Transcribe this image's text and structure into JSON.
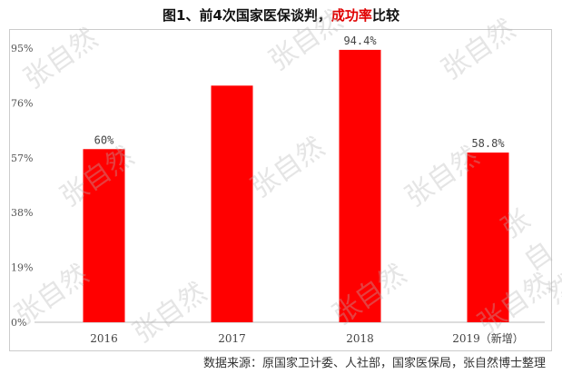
{
  "chart_data": {
    "type": "bar",
    "title_prefix": "图1、前4次国家医保谈判，",
    "title_highlight": "成功率",
    "title_suffix": "比较",
    "categories": [
      "2016",
      "2017",
      "2018",
      "2019（新增）"
    ],
    "values": [
      60,
      82,
      94.4,
      58.8
    ],
    "data_labels": [
      "60%",
      null,
      "94.4%",
      "58.8%"
    ],
    "yticks": [
      "0%",
      "19%",
      "38%",
      "57%",
      "76%",
      "95%"
    ],
    "ytick_values": [
      0,
      19,
      38,
      57,
      76,
      95
    ],
    "ylim": [
      0,
      95
    ],
    "grid": false,
    "bar_color": "#ff0000",
    "title_highlight_color": "#e00000"
  },
  "source": "数据来源：原国家卫计委、人社部，国家医保局，张自然博士整理",
  "watermark": "张自然"
}
